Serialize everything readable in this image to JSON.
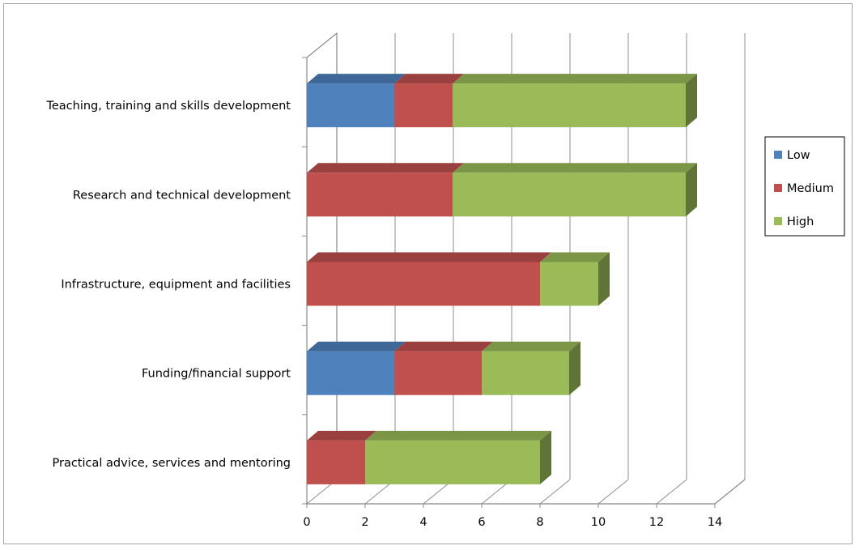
{
  "chart_data": {
    "type": "bar",
    "orientation": "horizontal",
    "stacked": true,
    "three_d": true,
    "categories": [
      "Teaching, training and skills development",
      "Research and technical development",
      "Infrastructure, equipment and facilities",
      "Funding/financial support",
      "Practical advice, services and mentoring"
    ],
    "series": [
      {
        "name": "Low",
        "values": [
          3,
          0,
          0,
          3,
          0
        ],
        "color": "#4f81bd"
      },
      {
        "name": "Medium",
        "values": [
          2,
          5,
          8,
          3,
          2
        ],
        "color": "#c0504d"
      },
      {
        "name": "High",
        "values": [
          8,
          8,
          2,
          3,
          6
        ],
        "color": "#9bbb59"
      }
    ],
    "xlim": [
      0,
      14
    ],
    "x_ticks": [
      "0",
      "2",
      "4",
      "6",
      "8",
      "10",
      "12",
      "14"
    ],
    "grid": true,
    "legend_position": "right"
  }
}
